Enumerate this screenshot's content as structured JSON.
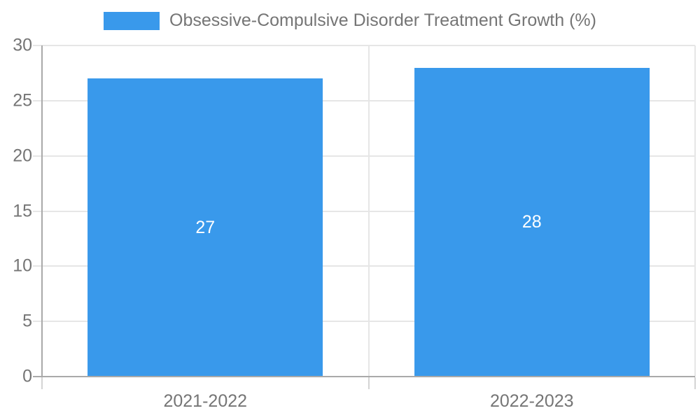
{
  "colors": {
    "bar": "#3999EB",
    "bar_label": "#FFFFFF",
    "axis_text": "#757575",
    "axis_line": "#A9A9A9",
    "gridline": "#E6E6E6",
    "tick": "#D4D4D4",
    "background": "#FFFFFF"
  },
  "chart_data": {
    "type": "bar",
    "title": "Obsessive-Compulsive Disorder Treatment Growth (%)",
    "legend_position": "top",
    "categories": [
      "2021-2022",
      "2022-2023"
    ],
    "values": [
      27,
      28
    ],
    "data_labels": [
      "27",
      "28"
    ],
    "xlabel": "",
    "ylabel": "",
    "ylim": [
      0,
      30
    ],
    "yticks": [
      0,
      5,
      10,
      15,
      20,
      25,
      30
    ],
    "grid": true
  }
}
